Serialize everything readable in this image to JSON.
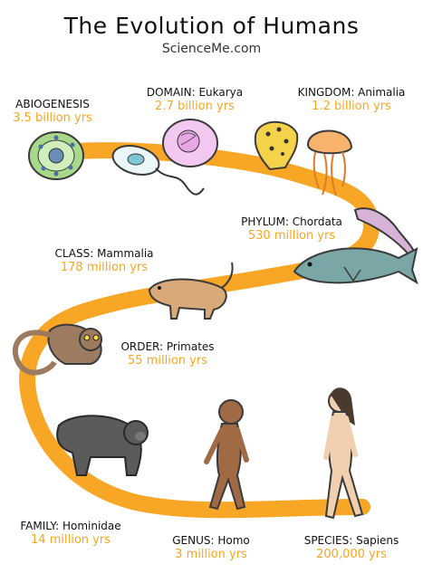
{
  "header": {
    "title": "The Evolution of Humans",
    "subtitle": "ScienceMe.com"
  },
  "colors": {
    "path": "#f7a11a",
    "label_time": "#f5a623",
    "text": "#111111"
  },
  "stages": [
    {
      "name": "ABIOGENESIS",
      "time": "3.5 billion yrs",
      "icon": "cell-icon"
    },
    {
      "name": "DOMAIN: Eukarya",
      "time": "2.7 billion yrs",
      "icon": "eukaryote-icon"
    },
    {
      "name": "KINGDOM: Animalia",
      "time": "1.2 billion yrs",
      "icon": "jellyfish-icon"
    },
    {
      "name": "PHYLUM: Chordata",
      "time": "530 million yrs",
      "icon": "fish-icon"
    },
    {
      "name": "CLASS: Mammalia",
      "time": "178 million yrs",
      "icon": "mammal-icon"
    },
    {
      "name": "ORDER: Primates",
      "time": "55 million yrs",
      "icon": "primate-icon"
    },
    {
      "name": "FAMILY: Hominidae",
      "time": "14 million yrs",
      "icon": "ape-icon"
    },
    {
      "name": "GENUS: Homo",
      "time": "3 million yrs",
      "icon": "hominid-icon"
    },
    {
      "name": "SPECIES: Sapiens",
      "time": "200,000 yrs",
      "icon": "human-icon"
    }
  ]
}
